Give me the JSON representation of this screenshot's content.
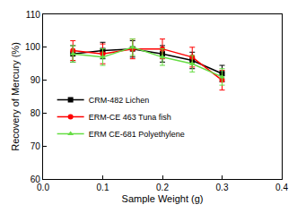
{
  "chart_data": {
    "type": "line",
    "x_label": "Sample Weight (g)",
    "y_label": "Recovery of Mercury (%)",
    "x": [
      0.05,
      0.1,
      0.15,
      0.2,
      0.25,
      0.3
    ],
    "series": [
      {
        "name": "CRM-482 Lichen",
        "color": "#000000",
        "marker": "square",
        "line_style": "solid",
        "values": [
          98,
          99,
          99.5,
          98,
          96,
          92
        ],
        "errors": [
          2.5,
          2.5,
          2.5,
          2.5,
          2.5,
          2.5
        ]
      },
      {
        "name": "ERM-CE 463 Tuna fish",
        "color": "#ff0000",
        "marker": "circle",
        "line_style": "solid",
        "values": [
          99,
          98,
          99.5,
          99.5,
          97,
          90
        ],
        "errors": [
          3,
          3,
          3,
          3,
          3,
          3
        ]
      },
      {
        "name": "ERM CE-681 Polyethylene",
        "color": "#66dd44",
        "marker": "triangle-up",
        "line_style": "solid",
        "values": [
          98,
          97,
          100,
          97,
          95,
          91
        ],
        "errors": [
          2.5,
          2.5,
          2.5,
          2.5,
          2.5,
          2.5
        ]
      }
    ],
    "xlim": [
      0.0,
      0.4
    ],
    "xticks": [
      {
        "value": 0.0,
        "label": "0.0"
      },
      0.1,
      0.2,
      0.3,
      0.4
    ],
    "ylim": [
      60,
      110
    ],
    "yticks": [
      60,
      70,
      80,
      90,
      100,
      110
    ],
    "grid": false,
    "legend": "lower left"
  }
}
